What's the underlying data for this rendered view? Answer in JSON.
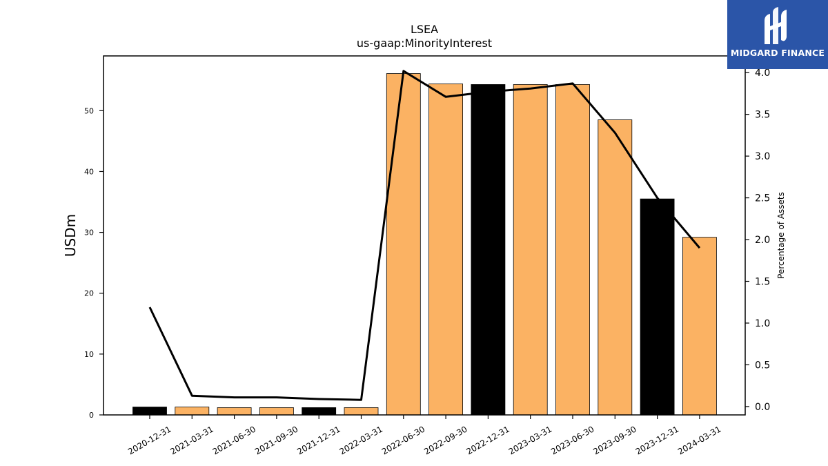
{
  "brand": {
    "name": "MIDGARD FINANCE",
    "color": "#2b55a8"
  },
  "chart_data": {
    "type": "bar",
    "title": "LSEA",
    "subtitle": "us-gaap:MinorityInterest",
    "ylabel": "USDm",
    "y2label": "Percentage of Assets",
    "categories": [
      "2020-12-31",
      "2021-03-31",
      "2021-06-30",
      "2021-09-30",
      "2021-12-31",
      "2022-03-31",
      "2022-06-30",
      "2022-09-30",
      "2022-12-31",
      "2023-03-31",
      "2023-06-30",
      "2023-09-30",
      "2023-12-31",
      "2024-03-31"
    ],
    "series": [
      {
        "type": "bar",
        "axis": "left",
        "values": [
          1.3,
          1.3,
          1.2,
          1.2,
          1.2,
          1.2,
          56.1,
          54.4,
          54.3,
          54.3,
          54.3,
          48.5,
          35.5,
          29.2
        ],
        "colors": [
          "#000000",
          "#fbb263",
          "#fbb263",
          "#fbb263",
          "#000000",
          "#fbb263",
          "#fbb263",
          "#fbb263",
          "#000000",
          "#fbb263",
          "#fbb263",
          "#fbb263",
          "#000000",
          "#fbb263"
        ]
      },
      {
        "type": "line",
        "axis": "right",
        "color": "#000000",
        "values": [
          1.19,
          0.13,
          0.11,
          0.11,
          0.09,
          0.08,
          4.02,
          3.71,
          3.77,
          3.81,
          3.87,
          3.28,
          2.5,
          1.9
        ]
      }
    ],
    "ylim": [
      0,
      59
    ],
    "y2lim": [
      -0.1,
      4.2
    ],
    "yticks": [
      0,
      10,
      20,
      30,
      40,
      50
    ],
    "y2ticks": [
      "0.0",
      "0.5",
      "1.0",
      "1.5",
      "2.0",
      "2.5",
      "3.0",
      "3.5",
      "4.0"
    ],
    "grid": false
  }
}
